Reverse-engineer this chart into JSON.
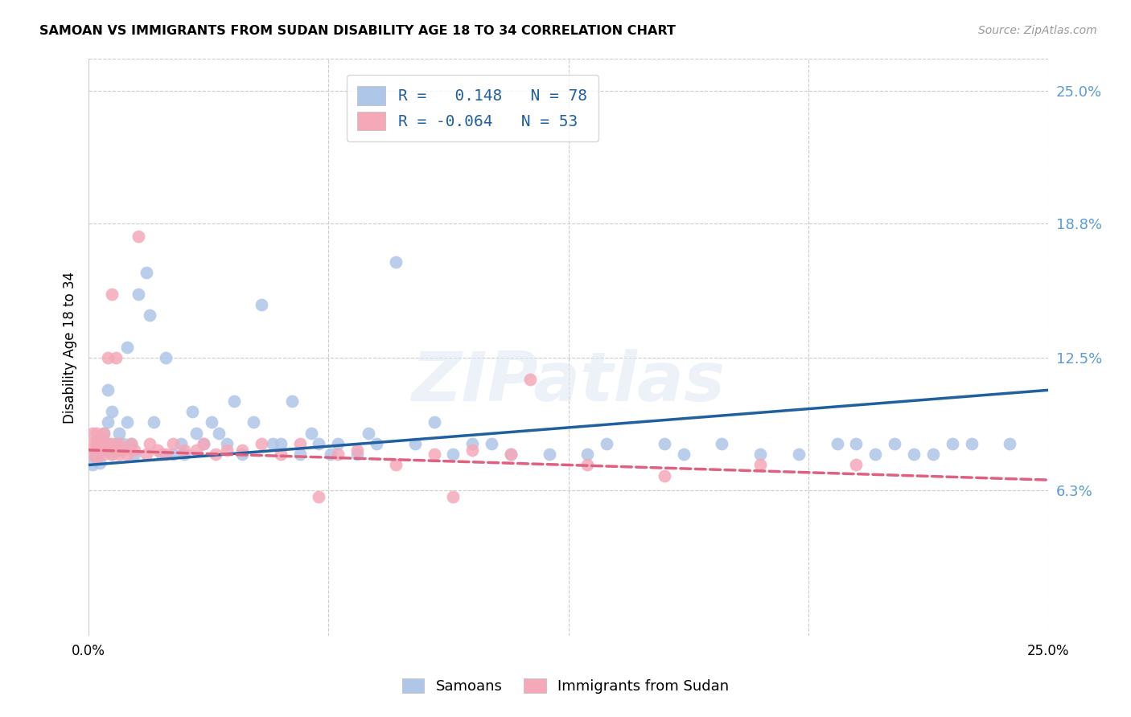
{
  "title": "SAMOAN VS IMMIGRANTS FROM SUDAN DISABILITY AGE 18 TO 34 CORRELATION CHART",
  "source": "Source: ZipAtlas.com",
  "ylabel": "Disability Age 18 to 34",
  "ytick_labels": [
    "6.3%",
    "12.5%",
    "18.8%",
    "25.0%"
  ],
  "ytick_values": [
    0.063,
    0.125,
    0.188,
    0.25
  ],
  "xlim": [
    0.0,
    0.25
  ],
  "ylim": [
    -0.005,
    0.265
  ],
  "legend_label1": "Samoans",
  "legend_label2": "Immigrants from Sudan",
  "r1": "0.148",
  "n1": "78",
  "r2": "-0.064",
  "n2": "53",
  "watermark": "ZIPatlas",
  "blue_color": "#aec6e8",
  "pink_color": "#f4a8b8",
  "line_blue": "#2060a0",
  "line_pink": "#e06080",
  "blue_line_x": [
    0.0,
    0.25
  ],
  "blue_line_y": [
    0.075,
    0.11
  ],
  "pink_line_x": [
    0.0,
    0.25
  ],
  "pink_line_y": [
    0.082,
    0.068
  ],
  "samoans_x": [
    0.001,
    0.001,
    0.002,
    0.002,
    0.002,
    0.003,
    0.003,
    0.003,
    0.004,
    0.004,
    0.005,
    0.005,
    0.005,
    0.006,
    0.006,
    0.007,
    0.007,
    0.008,
    0.008,
    0.009,
    0.01,
    0.01,
    0.011,
    0.012,
    0.013,
    0.015,
    0.016,
    0.017,
    0.019,
    0.02,
    0.022,
    0.024,
    0.025,
    0.027,
    0.028,
    0.03,
    0.032,
    0.034,
    0.036,
    0.038,
    0.04,
    0.043,
    0.045,
    0.048,
    0.05,
    0.053,
    0.055,
    0.058,
    0.06,
    0.063,
    0.065,
    0.07,
    0.073,
    0.075,
    0.08,
    0.085,
    0.09,
    0.095,
    0.1,
    0.105,
    0.11,
    0.12,
    0.13,
    0.135,
    0.15,
    0.155,
    0.165,
    0.175,
    0.185,
    0.195,
    0.2,
    0.205,
    0.21,
    0.215,
    0.22,
    0.225,
    0.23,
    0.24
  ],
  "samoans_y": [
    0.08,
    0.075,
    0.085,
    0.078,
    0.082,
    0.076,
    0.088,
    0.08,
    0.085,
    0.09,
    0.11,
    0.095,
    0.085,
    0.08,
    0.1,
    0.085,
    0.083,
    0.09,
    0.082,
    0.085,
    0.095,
    0.13,
    0.085,
    0.08,
    0.155,
    0.165,
    0.145,
    0.095,
    0.08,
    0.125,
    0.08,
    0.085,
    0.08,
    0.1,
    0.09,
    0.085,
    0.095,
    0.09,
    0.085,
    0.105,
    0.08,
    0.095,
    0.15,
    0.085,
    0.085,
    0.105,
    0.08,
    0.09,
    0.085,
    0.08,
    0.085,
    0.08,
    0.09,
    0.085,
    0.17,
    0.085,
    0.095,
    0.08,
    0.085,
    0.085,
    0.08,
    0.08,
    0.08,
    0.085,
    0.085,
    0.08,
    0.085,
    0.08,
    0.08,
    0.085,
    0.085,
    0.08,
    0.085,
    0.08,
    0.08,
    0.085,
    0.085,
    0.085
  ],
  "sudan_x": [
    0.001,
    0.001,
    0.001,
    0.002,
    0.002,
    0.002,
    0.003,
    0.003,
    0.003,
    0.004,
    0.004,
    0.005,
    0.005,
    0.005,
    0.006,
    0.006,
    0.006,
    0.007,
    0.007,
    0.008,
    0.008,
    0.009,
    0.01,
    0.011,
    0.012,
    0.013,
    0.015,
    0.016,
    0.018,
    0.02,
    0.022,
    0.025,
    0.028,
    0.03,
    0.033,
    0.036,
    0.04,
    0.045,
    0.05,
    0.055,
    0.06,
    0.065,
    0.07,
    0.08,
    0.09,
    0.095,
    0.1,
    0.11,
    0.115,
    0.13,
    0.15,
    0.175,
    0.2
  ],
  "sudan_y": [
    0.085,
    0.08,
    0.09,
    0.078,
    0.085,
    0.09,
    0.082,
    0.085,
    0.088,
    0.08,
    0.09,
    0.082,
    0.085,
    0.125,
    0.08,
    0.085,
    0.155,
    0.082,
    0.125,
    0.08,
    0.085,
    0.082,
    0.08,
    0.085,
    0.082,
    0.182,
    0.08,
    0.085,
    0.082,
    0.08,
    0.085,
    0.082,
    0.082,
    0.085,
    0.08,
    0.082,
    0.082,
    0.085,
    0.08,
    0.085,
    0.06,
    0.08,
    0.082,
    0.075,
    0.08,
    0.06,
    0.082,
    0.08,
    0.115,
    0.075,
    0.07,
    0.075,
    0.075
  ]
}
